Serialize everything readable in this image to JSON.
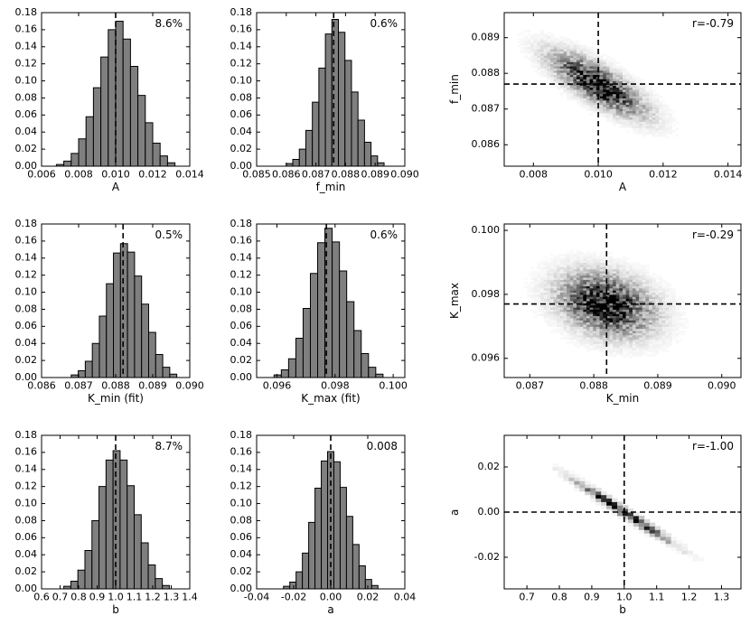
{
  "figure": {
    "background": "#ffffff",
    "colors": {
      "histogram_fill": "#7f7f7f",
      "axis": "#000000",
      "marker_line": "#000000"
    }
  },
  "chart_data": [
    {
      "id": "hist-A",
      "type": "hist",
      "xlabel": "A",
      "annotation": "8.6%",
      "xlim": [
        0.006,
        0.014
      ],
      "ylim": [
        0,
        0.18
      ],
      "xticks": [
        0.006,
        0.008,
        0.01,
        0.012,
        0.014
      ],
      "xtick_labels": [
        "0.006",
        "0.008",
        "0.010",
        "0.012",
        "0.014"
      ],
      "yticks": [
        0,
        0.02,
        0.04,
        0.06,
        0.08,
        0.1,
        0.12,
        0.14,
        0.16,
        0.18
      ],
      "ytick_labels": [
        "0.00",
        "0.02",
        "0.04",
        "0.06",
        "0.08",
        "0.10",
        "0.12",
        "0.14",
        "0.16",
        "0.18"
      ],
      "vline": 0.01,
      "bins_start": 0.0068,
      "bin_width": 0.0004,
      "values": [
        0.002,
        0.006,
        0.015,
        0.032,
        0.058,
        0.092,
        0.128,
        0.16,
        0.17,
        0.149,
        0.117,
        0.083,
        0.051,
        0.027,
        0.012,
        0.004
      ],
      "fill": "#7f7f7f"
    },
    {
      "id": "hist-f_min",
      "type": "hist",
      "xlabel": "f_min",
      "annotation": "0.6%",
      "xlim": [
        0.085,
        0.09
      ],
      "ylim": [
        0,
        0.18
      ],
      "xticks": [
        0.085,
        0.086,
        0.087,
        0.088,
        0.089,
        0.09
      ],
      "xtick_labels": [
        "0.085",
        "0.086",
        "0.087",
        "0.088",
        "0.089",
        "0.090"
      ],
      "yticks": [
        0,
        0.02,
        0.04,
        0.06,
        0.08,
        0.1,
        0.12,
        0.14,
        0.16,
        0.18
      ],
      "ytick_labels": [
        "0.00",
        "0.02",
        "0.04",
        "0.06",
        "0.08",
        "0.10",
        "0.12",
        "0.14",
        "0.16",
        "0.18"
      ],
      "vline": 0.0876,
      "bins_start": 0.086,
      "bin_width": 0.00022,
      "values": [
        0.003,
        0.008,
        0.02,
        0.042,
        0.075,
        0.115,
        0.155,
        0.172,
        0.157,
        0.124,
        0.087,
        0.054,
        0.028,
        0.012,
        0.004
      ],
      "fill": "#7f7f7f"
    },
    {
      "id": "density-A-f_min",
      "type": "density2d",
      "xlabel": "A",
      "ylabel": "f_min",
      "annotation": "r=-0.79",
      "r": -0.79,
      "xlim": [
        0.0071,
        0.0144
      ],
      "ylim": [
        0.0854,
        0.0897
      ],
      "xticks": [
        0.008,
        0.01,
        0.012,
        0.014
      ],
      "xtick_labels": [
        "0.008",
        "0.010",
        "0.012",
        "0.014"
      ],
      "yticks": [
        0.086,
        0.087,
        0.088,
        0.089
      ],
      "ytick_labels": [
        "0.086",
        "0.087",
        "0.088",
        "0.089"
      ],
      "center": [
        0.01,
        0.0877
      ],
      "sigma": [
        0.00086,
        0.00053
      ],
      "vline": 0.01,
      "hline": 0.0877,
      "grid_n": 72
    },
    {
      "id": "hist-K_min-fit",
      "type": "hist",
      "xlabel": "K_min (fit)",
      "annotation": "0.5%",
      "xlim": [
        0.086,
        0.09
      ],
      "ylim": [
        0,
        0.18
      ],
      "xticks": [
        0.086,
        0.087,
        0.088,
        0.089,
        0.09
      ],
      "xtick_labels": [
        "0.086",
        "0.087",
        "0.088",
        "0.089",
        "0.090"
      ],
      "yticks": [
        0,
        0.02,
        0.04,
        0.06,
        0.08,
        0.1,
        0.12,
        0.14,
        0.16,
        0.18
      ],
      "ytick_labels": [
        "0.00",
        "0.02",
        "0.04",
        "0.06",
        "0.08",
        "0.10",
        "0.12",
        "0.14",
        "0.16",
        "0.18"
      ],
      "vline": 0.0882,
      "bins_start": 0.0868,
      "bin_width": 0.00019,
      "values": [
        0.003,
        0.008,
        0.019,
        0.04,
        0.072,
        0.11,
        0.146,
        0.157,
        0.147,
        0.119,
        0.086,
        0.053,
        0.027,
        0.012,
        0.004
      ],
      "fill": "#7f7f7f"
    },
    {
      "id": "hist-K_max-fit",
      "type": "hist",
      "xlabel": "K_max (fit)",
      "annotation": "0.6%",
      "xlim": [
        0.0953,
        0.1004
      ],
      "ylim": [
        0,
        0.18
      ],
      "xticks": [
        0.096,
        0.098,
        0.1
      ],
      "xtick_labels": [
        "0.096",
        "0.098",
        "0.100"
      ],
      "yticks": [
        0,
        0.02,
        0.04,
        0.06,
        0.08,
        0.1,
        0.12,
        0.14,
        0.16,
        0.18
      ],
      "ytick_labels": [
        "0.00",
        "0.02",
        "0.04",
        "0.06",
        "0.08",
        "0.10",
        "0.12",
        "0.14",
        "0.16",
        "0.18"
      ],
      "vline": 0.0977,
      "bins_start": 0.0959,
      "bin_width": 0.00025,
      "values": [
        0.003,
        0.009,
        0.022,
        0.046,
        0.081,
        0.122,
        0.158,
        0.175,
        0.159,
        0.125,
        0.089,
        0.055,
        0.028,
        0.012,
        0.004
      ],
      "fill": "#7f7f7f"
    },
    {
      "id": "density-K_min-K_max",
      "type": "density2d",
      "xlabel": "K_min",
      "ylabel": "K_max",
      "annotation": "r=-0.29",
      "r": -0.29,
      "xlim": [
        0.0866,
        0.0903
      ],
      "ylim": [
        0.0954,
        0.1002
      ],
      "xticks": [
        0.087,
        0.088,
        0.089,
        0.09
      ],
      "xtick_labels": [
        "0.087",
        "0.088",
        "0.089",
        "0.090"
      ],
      "yticks": [
        0.096,
        0.098,
        0.1
      ],
      "ytick_labels": [
        "0.096",
        "0.098",
        "0.100"
      ],
      "center": [
        0.0882,
        0.0977
      ],
      "sigma": [
        0.00044,
        0.00059
      ],
      "vline": 0.0882,
      "hline": 0.0977,
      "grid_n": 72
    },
    {
      "id": "hist-b",
      "type": "hist",
      "xlabel": "b",
      "annotation": "8.7%",
      "xlim": [
        0.6,
        1.4
      ],
      "ylim": [
        0,
        0.18
      ],
      "xticks": [
        0.6,
        0.7,
        0.8,
        0.9,
        1.0,
        1.1,
        1.2,
        1.3,
        1.4
      ],
      "xtick_labels": [
        "0.6",
        "0.7",
        "0.8",
        "0.9",
        "1.0",
        "1.1",
        "1.2",
        "1.3",
        "1.4"
      ],
      "yticks": [
        0,
        0.02,
        0.04,
        0.06,
        0.08,
        0.1,
        0.12,
        0.14,
        0.16,
        0.18
      ],
      "ytick_labels": [
        "0.00",
        "0.02",
        "0.04",
        "0.06",
        "0.08",
        "0.10",
        "0.12",
        "0.14",
        "0.16",
        "0.18"
      ],
      "vline": 1.0,
      "bins_start": 0.72,
      "bin_width": 0.038,
      "values": [
        0.003,
        0.009,
        0.022,
        0.045,
        0.08,
        0.12,
        0.151,
        0.162,
        0.151,
        0.121,
        0.087,
        0.054,
        0.028,
        0.012,
        0.004
      ],
      "fill": "#7f7f7f"
    },
    {
      "id": "hist-a",
      "type": "hist",
      "xlabel": "a",
      "annotation": "0.008",
      "xlim": [
        -0.04,
        0.04
      ],
      "ylim": [
        0,
        0.18
      ],
      "xticks": [
        -0.04,
        -0.02,
        0.0,
        0.02,
        0.04
      ],
      "xtick_labels": [
        "-0.04",
        "-0.02",
        "0.00",
        "0.02",
        "0.04"
      ],
      "yticks": [
        0,
        0.02,
        0.04,
        0.06,
        0.08,
        0.1,
        0.12,
        0.14,
        0.16,
        0.18
      ],
      "ytick_labels": [
        "0.00",
        "0.02",
        "0.04",
        "0.06",
        "0.08",
        "0.10",
        "0.12",
        "0.14",
        "0.16",
        "0.18"
      ],
      "vline": 0.0,
      "bins_start": -0.0255,
      "bin_width": 0.0034,
      "values": [
        0.003,
        0.008,
        0.02,
        0.042,
        0.078,
        0.118,
        0.15,
        0.161,
        0.149,
        0.119,
        0.085,
        0.052,
        0.027,
        0.011,
        0.004
      ],
      "fill": "#7f7f7f"
    },
    {
      "id": "density-b-a",
      "type": "density2d",
      "xlabel": "b",
      "ylabel": "a",
      "annotation": "r=-1.00",
      "r": -1.0,
      "xlim": [
        0.63,
        1.36
      ],
      "ylim": [
        -0.034,
        0.034
      ],
      "xticks": [
        0.7,
        0.8,
        0.9,
        1.0,
        1.1,
        1.2,
        1.3
      ],
      "xtick_labels": [
        "0.7",
        "0.8",
        "0.9",
        "1.0",
        "1.1",
        "1.2",
        "1.3"
      ],
      "yticks": [
        -0.02,
        0.0,
        0.02
      ],
      "ytick_labels": [
        "-0.02",
        "0.00",
        "0.02"
      ],
      "center": [
        1.0,
        0.0
      ],
      "sigma": [
        0.087,
        0.008
      ],
      "vline": 1.0,
      "hline": 0.0,
      "grid_n": 44
    }
  ]
}
